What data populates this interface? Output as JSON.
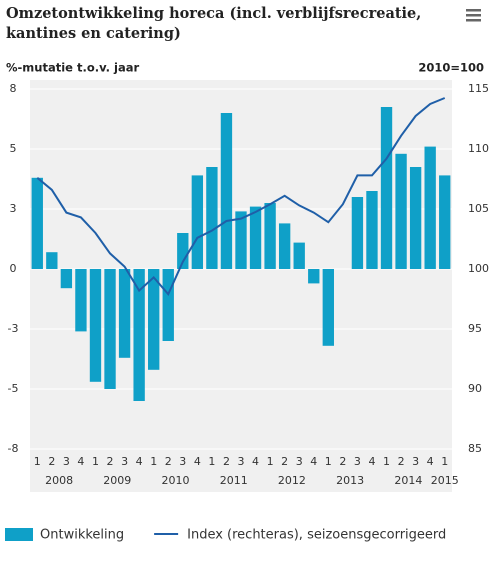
{
  "chart_data": {
    "type": "combo",
    "title": "Omzetontwikkeling horeca (incl. verblijfsrecreatie, kantines en catering)",
    "y_label": "%-mutatie t.o.v. jaar",
    "y2_label": "2010=100",
    "categories": [
      "1",
      "2",
      "3",
      "4",
      "1",
      "2",
      "3",
      "4",
      "1",
      "2",
      "3",
      "4",
      "1",
      "2",
      "3",
      "4",
      "1",
      "2",
      "3",
      "4",
      "1",
      "2",
      "3",
      "4",
      "1",
      "2",
      "3",
      "4",
      "1"
    ],
    "groups": [
      "2008",
      "2009",
      "2010",
      "2011",
      "2012",
      "2013",
      "2014",
      "2015"
    ],
    "series": [
      {
        "name": "Ontwikkeling",
        "type": "bar",
        "color": "#0fa0c8",
        "values": [
          3.8,
          0.7,
          -0.8,
          -2.6,
          -4.7,
          -5.0,
          -3.7,
          -5.5,
          -4.2,
          -3.0,
          1.5,
          3.9,
          4.25,
          6.5,
          2.4,
          2.6,
          2.75,
          1.9,
          1.1,
          -0.6,
          -3.2,
          0,
          3.0,
          3.25,
          6.75,
          4.8,
          4.25,
          5.1,
          3.9
        ]
      },
      {
        "name": "Index (rechteras), seizoensgecorrigeerd",
        "type": "line",
        "axis": "y2",
        "color": "#1f5fa8",
        "values": [
          107.6,
          106.6,
          104.7,
          104.3,
          103,
          101.3,
          100.2,
          98.2,
          99.3,
          97.9,
          100.6,
          102.6,
          103.2,
          104,
          104.2,
          104.75,
          105.4,
          106.1,
          105.3,
          104.7,
          103.9,
          105.4,
          107.8,
          107.8,
          109.2,
          111.1,
          112.75,
          113.75,
          114.25
        ]
      }
    ],
    "ylim": [
      -7.5,
      7.5
    ],
    "yticks": [
      {
        "value": 7.5,
        "label": "8"
      },
      5,
      {
        "value": 2.5,
        "label": "3"
      },
      0,
      {
        "value": -2.5,
        "label": "-3"
      },
      -5,
      {
        "value": -7.5,
        "label": "-8"
      }
    ],
    "y2lim": [
      85,
      115
    ],
    "y2ticks": [
      115,
      110,
      105,
      100,
      95,
      90,
      85
    ],
    "grid": true
  }
}
